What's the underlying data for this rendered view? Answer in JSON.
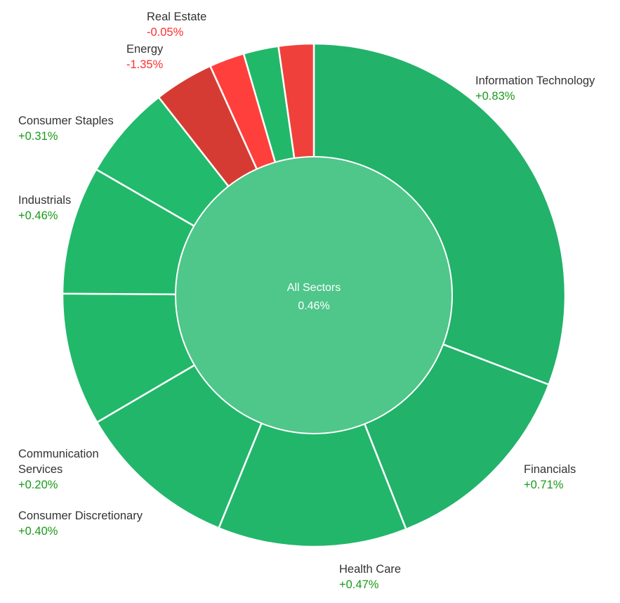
{
  "chart_data": {
    "type": "pie",
    "center": {
      "label": "All Sectors",
      "value": "0.46%",
      "color": "#4fc68a"
    },
    "colors": {
      "positive_label": "#1a9a1a",
      "negative_label": "#ff2e2e"
    },
    "slices": [
      {
        "key": "information-technology",
        "name": [
          "Information Technology"
        ],
        "change": "+0.83%",
        "weight": 31.4,
        "color": "#22b26a"
      },
      {
        "key": "financials",
        "name": [
          "Financials"
        ],
        "change": "+0.71%",
        "weight": 13.5,
        "color": "#22b26a"
      },
      {
        "key": "health-care",
        "name": [
          "Health Care"
        ],
        "change": "+0.47%",
        "weight": 12.4,
        "color": "#22b66a"
      },
      {
        "key": "consumer-discretionary",
        "name": [
          "Consumer Discretionary"
        ],
        "change": "+0.40%",
        "weight": 10.6,
        "color": "#22b66a"
      },
      {
        "key": "communication-services",
        "name": [
          "Communication",
          "Services"
        ],
        "change": "+0.20%",
        "weight": 8.7,
        "color": "#22b86a"
      },
      {
        "key": "industrials",
        "name": [
          "Industrials"
        ],
        "change": "+0.46%",
        "weight": 8.4,
        "color": "#22b86a"
      },
      {
        "key": "consumer-staples",
        "name": [
          "Consumer Staples"
        ],
        "change": "+0.31%",
        "weight": 6.2,
        "color": "#22ba6c"
      },
      {
        "key": "energy",
        "name": [
          "Energy"
        ],
        "change": "-1.35%",
        "weight": 3.9,
        "color": "#d63b33"
      },
      {
        "key": "utilities",
        "name": [],
        "change": "",
        "weight": 2.3,
        "color": "#ff3f3c"
      },
      {
        "key": "materials",
        "name": [],
        "change": "",
        "weight": 2.3,
        "color": "#22b86a"
      },
      {
        "key": "real-estate",
        "name": [
          "Real Estate"
        ],
        "change": "-0.05%",
        "weight": 2.3,
        "color": "#f0403b"
      }
    ]
  }
}
